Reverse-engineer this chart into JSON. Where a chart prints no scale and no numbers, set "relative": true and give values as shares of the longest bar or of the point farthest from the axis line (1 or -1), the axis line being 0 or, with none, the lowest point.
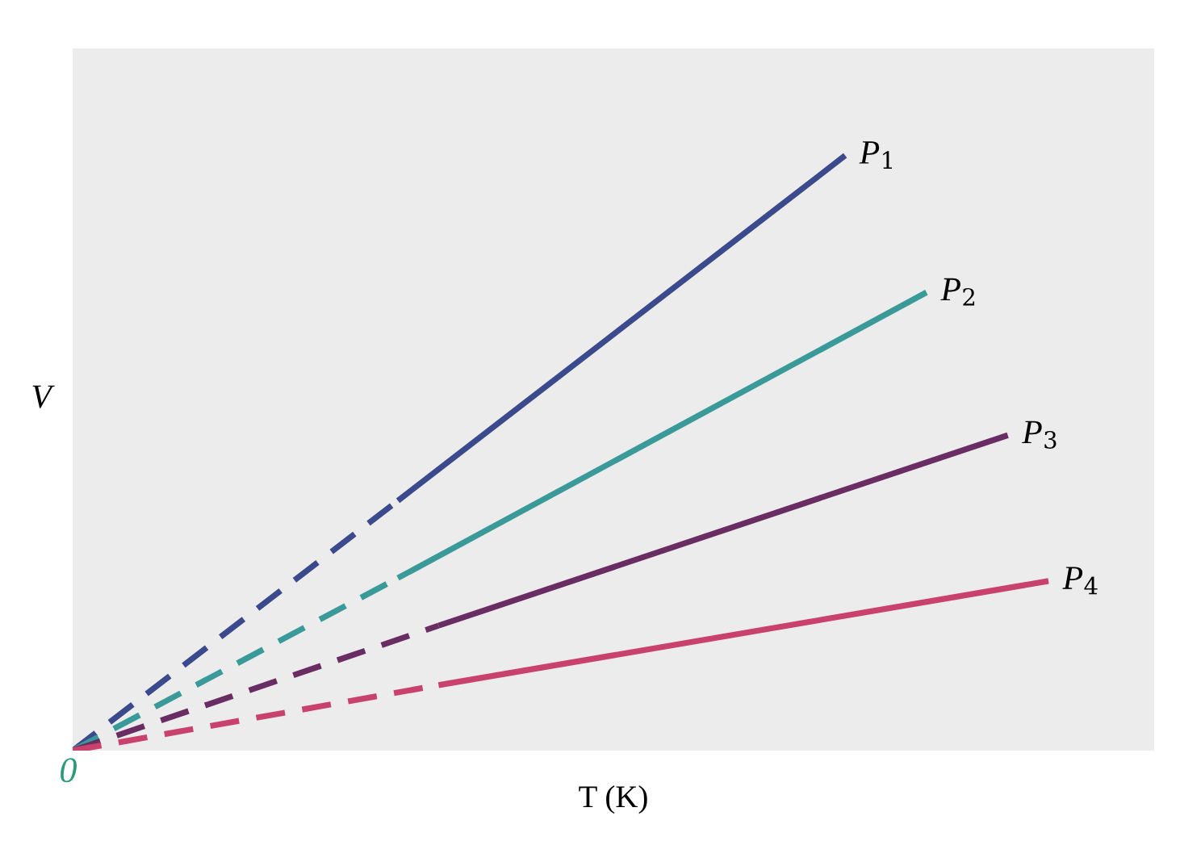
{
  "chart_data": {
    "type": "line",
    "relative": true,
    "xlabel": "T (K)",
    "ylabel": "V",
    "annotations": [
      "0"
    ],
    "categories": [
      null,
      null,
      null,
      null,
      null,
      null,
      null,
      null,
      null,
      null,
      null,
      null,
      null,
      null,
      null,
      null,
      null,
      null,
      null,
      null,
      null,
      null,
      null,
      null,
      null
    ],
    "series": [
      {
        "color": "#3b4a8c",
        "line_style": "dashed",
        "values": [
          0,
          null,
          null,
          null,
          null,
          null,
          null,
          null,
          0.42,
          null,
          null,
          null,
          null,
          null,
          null,
          null,
          null,
          null,
          null,
          null,
          null,
          null,
          null,
          null,
          null
        ]
      },
      {
        "name": "P$_{1}$",
        "color": "#3b4a8c",
        "line_style": "solid",
        "values": [
          null,
          null,
          null,
          null,
          null,
          null,
          null,
          null,
          0.42,
          null,
          null,
          null,
          null,
          null,
          null,
          null,
          null,
          null,
          null,
          1.0,
          null,
          null,
          null,
          null,
          null
        ]
      },
      {
        "color": "#3a9a9a",
        "line_style": "dashed",
        "values": [
          0,
          null,
          null,
          null,
          null,
          null,
          null,
          null,
          0.29,
          null,
          null,
          null,
          null,
          null,
          null,
          null,
          null,
          null,
          null,
          null,
          null,
          null,
          null,
          null,
          null
        ]
      },
      {
        "name": "P$_{2}$",
        "color": "#3a9a9a",
        "line_style": "solid",
        "values": [
          null,
          null,
          null,
          null,
          null,
          null,
          null,
          null,
          0.29,
          null,
          null,
          null,
          null,
          null,
          null,
          null,
          null,
          null,
          null,
          null,
          null,
          0.77,
          null,
          null,
          null
        ]
      },
      {
        "color": "#6a2d63",
        "line_style": "dashed",
        "values": [
          0,
          null,
          null,
          null,
          null,
          null,
          null,
          null,
          null,
          0.21,
          null,
          null,
          null,
          null,
          null,
          null,
          null,
          null,
          null,
          null,
          null,
          null,
          null,
          null,
          null
        ]
      },
      {
        "name": "P$_{3}$",
        "color": "#6a2d63",
        "line_style": "solid",
        "values": [
          null,
          null,
          null,
          null,
          null,
          null,
          null,
          null,
          null,
          0.21,
          null,
          null,
          null,
          null,
          null,
          null,
          null,
          null,
          null,
          null,
          null,
          null,
          null,
          0.53,
          null
        ]
      },
      {
        "color": "#c9426e",
        "line_style": "dashed",
        "values": [
          0,
          null,
          null,
          null,
          null,
          null,
          null,
          null,
          null,
          0.11,
          null,
          null,
          null,
          null,
          null,
          null,
          null,
          null,
          null,
          null,
          null,
          null,
          null,
          null,
          null
        ]
      },
      {
        "name": "P$_{4}$",
        "color": "#c9426e",
        "line_style": "solid",
        "values": [
          null,
          null,
          null,
          null,
          null,
          null,
          null,
          null,
          null,
          0.11,
          null,
          null,
          null,
          null,
          null,
          null,
          null,
          null,
          null,
          null,
          null,
          null,
          null,
          null,
          0.285
        ]
      }
    ]
  }
}
